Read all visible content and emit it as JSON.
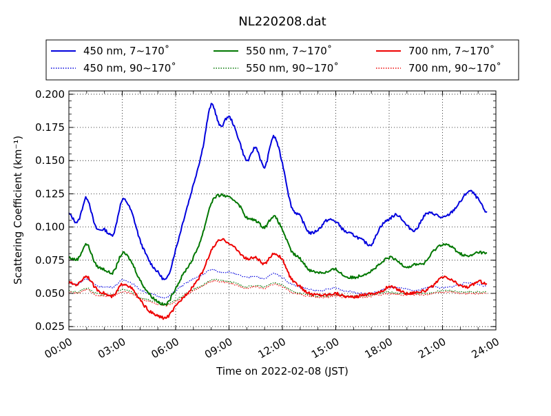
{
  "chart_data": {
    "type": "line",
    "title": "NL220208.dat",
    "xlabel": "Time on 2022-02-08 (JST)",
    "ylabel": "Scattering Coefficient (km⁻¹)",
    "ylim": [
      0.0225,
      0.2025
    ],
    "xlim": [
      "00:00",
      "24:00"
    ],
    "x_ticks": [
      "00:00",
      "03:00",
      "06:00",
      "09:00",
      "12:00",
      "15:00",
      "18:00",
      "21:00",
      "24:00"
    ],
    "y_ticks": [
      "0.025",
      "0.050",
      "0.075",
      "0.100",
      "0.125",
      "0.150",
      "0.175",
      "0.200"
    ],
    "grid": true,
    "legend_placement": "top (above plot), 3 columns",
    "x_hours": [
      0,
      0.5,
      1,
      1.5,
      2,
      2.5,
      3,
      3.5,
      4,
      4.5,
      5,
      5.5,
      6,
      6.5,
      7,
      7.5,
      8,
      8.5,
      9,
      9.5,
      10,
      10.5,
      11,
      11.5,
      12,
      12.5,
      13,
      13.5,
      14,
      14.5,
      15,
      15.5,
      16,
      16.5,
      17,
      17.5,
      18,
      18.5,
      19,
      19.5,
      20,
      20.5,
      21,
      21.5,
      22,
      22.5,
      23,
      23.5
    ],
    "series": [
      {
        "name": "450 nm, 7∼170˚",
        "color": "#0000dd",
        "style": "solid",
        "values": [
          0.11,
          0.104,
          0.122,
          0.1,
          0.098,
          0.095,
          0.12,
          0.112,
          0.09,
          0.075,
          0.066,
          0.061,
          0.083,
          0.108,
          0.132,
          0.158,
          0.192,
          0.176,
          0.183,
          0.168,
          0.15,
          0.16,
          0.145,
          0.168,
          0.148,
          0.116,
          0.108,
          0.096,
          0.098,
          0.105,
          0.104,
          0.097,
          0.094,
          0.09,
          0.087,
          0.1,
          0.106,
          0.109,
          0.101,
          0.098,
          0.109,
          0.11,
          0.107,
          0.111,
          0.119,
          0.127,
          0.121,
          0.11
        ]
      },
      {
        "name": "450 nm, 90∼170˚",
        "color": "#0000dd",
        "style": "dotted",
        "values": [
          0.058,
          0.057,
          0.061,
          0.056,
          0.055,
          0.055,
          0.06,
          0.058,
          0.053,
          0.05,
          0.048,
          0.047,
          0.052,
          0.057,
          0.061,
          0.064,
          0.068,
          0.066,
          0.066,
          0.064,
          0.062,
          0.063,
          0.061,
          0.065,
          0.062,
          0.057,
          0.055,
          0.053,
          0.052,
          0.053,
          0.054,
          0.052,
          0.051,
          0.05,
          0.05,
          0.052,
          0.054,
          0.054,
          0.053,
          0.052,
          0.054,
          0.055,
          0.054,
          0.055,
          0.057,
          0.058,
          0.057,
          0.055
        ]
      },
      {
        "name": "550 nm, 7∼170˚",
        "color": "#007700",
        "style": "solid",
        "values": [
          0.077,
          0.076,
          0.087,
          0.072,
          0.068,
          0.066,
          0.08,
          0.074,
          0.06,
          0.05,
          0.044,
          0.042,
          0.054,
          0.066,
          0.077,
          0.094,
          0.118,
          0.124,
          0.122,
          0.118,
          0.107,
          0.105,
          0.1,
          0.108,
          0.098,
          0.082,
          0.076,
          0.068,
          0.066,
          0.066,
          0.068,
          0.063,
          0.062,
          0.064,
          0.067,
          0.072,
          0.077,
          0.074,
          0.07,
          0.072,
          0.073,
          0.082,
          0.087,
          0.085,
          0.08,
          0.078,
          0.081,
          0.08
        ]
      },
      {
        "name": "550 nm, 90∼170˚",
        "color": "#007700",
        "style": "dotted",
        "values": [
          0.052,
          0.051,
          0.054,
          0.05,
          0.049,
          0.049,
          0.053,
          0.051,
          0.047,
          0.045,
          0.043,
          0.042,
          0.045,
          0.049,
          0.053,
          0.056,
          0.06,
          0.06,
          0.059,
          0.057,
          0.055,
          0.056,
          0.055,
          0.058,
          0.056,
          0.052,
          0.05,
          0.049,
          0.048,
          0.048,
          0.049,
          0.048,
          0.048,
          0.048,
          0.049,
          0.05,
          0.051,
          0.05,
          0.05,
          0.05,
          0.05,
          0.051,
          0.052,
          0.052,
          0.051,
          0.051,
          0.051,
          0.051
        ]
      },
      {
        "name": "700 nm, 7∼170˚",
        "color": "#ee0000",
        "style": "solid",
        "values": [
          0.058,
          0.057,
          0.063,
          0.054,
          0.05,
          0.048,
          0.057,
          0.054,
          0.045,
          0.037,
          0.033,
          0.032,
          0.04,
          0.048,
          0.056,
          0.066,
          0.082,
          0.09,
          0.088,
          0.082,
          0.076,
          0.077,
          0.072,
          0.08,
          0.075,
          0.061,
          0.055,
          0.05,
          0.049,
          0.049,
          0.05,
          0.048,
          0.047,
          0.049,
          0.05,
          0.051,
          0.055,
          0.053,
          0.05,
          0.051,
          0.052,
          0.056,
          0.062,
          0.06,
          0.056,
          0.055,
          0.059,
          0.057
        ]
      },
      {
        "name": "700 nm, 90∼170˚",
        "color": "#ee0000",
        "style": "dotted",
        "values": [
          0.051,
          0.05,
          0.053,
          0.049,
          0.048,
          0.048,
          0.051,
          0.05,
          0.046,
          0.044,
          0.042,
          0.041,
          0.044,
          0.048,
          0.052,
          0.055,
          0.059,
          0.059,
          0.058,
          0.056,
          0.054,
          0.055,
          0.054,
          0.057,
          0.055,
          0.051,
          0.049,
          0.048,
          0.047,
          0.047,
          0.048,
          0.047,
          0.047,
          0.047,
          0.048,
          0.049,
          0.05,
          0.049,
          0.049,
          0.049,
          0.049,
          0.05,
          0.051,
          0.051,
          0.05,
          0.05,
          0.05,
          0.05
        ]
      }
    ]
  }
}
